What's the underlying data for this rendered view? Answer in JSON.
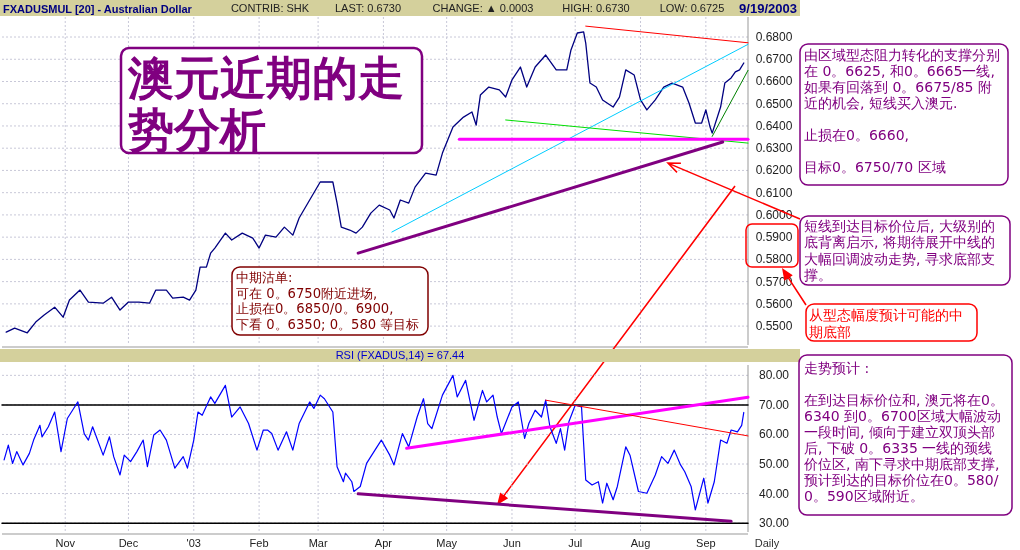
{
  "chart_data": [
    {
      "type": "line",
      "title": "FXADUSMUL [20] - Australian Dollar",
      "xlim": [
        "2002-10-02",
        "2003-09-21"
      ],
      "xticks": [
        {
          "value": "2002-11-01",
          "label": null
        },
        {
          "value": "2002-12-01",
          "label": null
        },
        {
          "value": "2003-01-01",
          "label": null
        },
        {
          "value": "2003-02-01",
          "label": null
        },
        {
          "value": "2003-03-01",
          "label": null
        },
        {
          "value": "2003-04-01",
          "label": null
        },
        {
          "value": "2003-05-01",
          "label": null
        },
        {
          "value": "2003-06-01",
          "label": null
        },
        {
          "value": "2003-07-01",
          "label": null
        },
        {
          "value": "2003-08-01",
          "label": null
        },
        {
          "value": "2003-09-01",
          "label": null
        }
      ],
      "ylim": [
        0.5415,
        0.689
      ],
      "yticks": [
        {
          "value": 0.55,
          "label": "0.5500"
        },
        {
          "value": 0.56,
          "label": "0.5600"
        },
        {
          "value": 0.57,
          "label": "0.5700"
        },
        {
          "value": 0.58,
          "label": "0.5800"
        },
        {
          "value": 0.59,
          "label": "0.5900"
        },
        {
          "value": 0.6,
          "label": "0.6000"
        },
        {
          "value": 0.61,
          "label": "0.6100"
        },
        {
          "value": 0.62,
          "label": "0.6200"
        },
        {
          "value": 0.63,
          "label": "0.6300"
        },
        {
          "value": 0.64,
          "label": "0.6400"
        },
        {
          "value": 0.65,
          "label": "0.6500"
        },
        {
          "value": 0.66,
          "label": "0.6600"
        },
        {
          "value": 0.67,
          "label": "0.6700"
        },
        {
          "value": 0.68,
          "label": "0.6800"
        }
      ],
      "grid": true,
      "tick_labels": "y",
      "annotations": [
        "CONTRIB: SHK",
        "LAST: 0.6730",
        "CHANGE: ▲ 0.0003",
        "HIGH: 0.6730",
        "LOW: 0.6725",
        "9/19/2003",
        "澳元近期的走势分析",
        "中期沽单:\n可在 0。6750附近进场,\n止损在0。6850/0。6900,\n下看 0。6350; 0。580  等目标",
        "由区域型态阻力转化的支撑分别在 0。6625,  和0。6665一线,  如果有回落到 0。6675/85 附近的机会, 短线买入澳元.\n\n止损在0。6660,\n\n目标0。6750/70 区域",
        {
          "text": "短线到达目标价位后, 大级别的底背离启示, 将期待展开中线的大幅回调波动走势, 寻求底部支撑。",
          "x": "2003-08-14",
          "y": 0.6233
        },
        "从型态幅度预计可能的中期底部"
      ],
      "series": [
        {
          "color": "#000080",
          "x": [
            "2002-10-04",
            "2002-10-08",
            "2002-10-14",
            "2002-10-18",
            "2002-10-22",
            "2002-10-27",
            "2002-10-31",
            "2002-11-03",
            "2002-11-08",
            "2002-11-12",
            "2002-11-19",
            "2002-11-23",
            "2002-11-27",
            "2002-12-01",
            "2002-12-06",
            "2002-12-11",
            "2002-12-14",
            "2002-12-19",
            "2002-12-22",
            "2002-12-27",
            "2002-12-30",
            "2003-01-02",
            "2003-01-04",
            "2003-01-07",
            "2003-01-09",
            "2003-01-11",
            "2003-01-16",
            "2003-01-19",
            "2003-01-24",
            "2003-01-29",
            "2003-02-01",
            "2003-02-04",
            "2003-02-09",
            "2003-02-13",
            "2003-02-17",
            "2003-02-20",
            "2003-02-25",
            "2003-03-02",
            "2003-03-08",
            "2003-03-10",
            "2003-03-12",
            "2003-03-16",
            "2003-03-19",
            "2003-03-22",
            "2003-03-26",
            "2003-03-30",
            "2003-04-04",
            "2003-04-06",
            "2003-04-09",
            "2003-04-13",
            "2003-04-16",
            "2003-04-21",
            "2003-04-26",
            "2003-04-29",
            "2003-05-04",
            "2003-05-09",
            "2003-05-13",
            "2003-05-15",
            "2003-05-17",
            "2003-05-21",
            "2003-05-26",
            "2003-05-29",
            "2003-06-01",
            "2003-06-05",
            "2003-06-08",
            "2003-06-12",
            "2003-06-17",
            "2003-06-22",
            "2003-06-27",
            "2003-06-29",
            "2003-07-02",
            "2003-07-05",
            "2003-07-06",
            "2003-07-08",
            "2003-07-11",
            "2003-07-14",
            "2003-07-19",
            "2003-07-22",
            "2003-07-25",
            "2003-07-29",
            "2003-08-01",
            "2003-08-04",
            "2003-08-08",
            "2003-08-12",
            "2003-08-16",
            "2003-08-21",
            "2003-08-24",
            "2003-08-27",
            "2003-08-30",
            "2003-09-01",
            "2003-09-03",
            "2003-09-04",
            "2003-09-08",
            "2003-09-10",
            "2003-09-13",
            "2003-09-15",
            "2003-09-17",
            "2003-09-19"
          ],
          "values": [
            0.5473,
            0.5491,
            0.547,
            0.5518,
            0.555,
            0.5585,
            0.554,
            0.5617,
            0.5662,
            0.5608,
            0.5603,
            0.563,
            0.5572,
            0.5608,
            0.5608,
            0.5603,
            0.5662,
            0.5662,
            0.5626,
            0.563,
            0.5617,
            0.5662,
            0.5765,
            0.5765,
            0.5828,
            0.5851,
            0.5918,
            0.5887,
            0.5918,
            0.5896,
            0.5851,
            0.5909,
            0.59,
            0.5945,
            0.5909,
            0.5986,
            0.6067,
            0.6148,
            0.6148,
            0.6053,
            0.5945,
            0.5932,
            0.5918,
            0.5945,
            0.6008,
            0.6044,
            0.6022,
            0.5986,
            0.6067,
            0.6053,
            0.6125,
            0.6188,
            0.6179,
            0.6278,
            0.6395,
            0.644,
            0.6463,
            0.6404,
            0.6539,
            0.6575,
            0.6562,
            0.653,
            0.6607,
            0.6665,
            0.6575,
            0.6665,
            0.6719,
            0.6652,
            0.6652,
            0.6742,
            0.6818,
            0.6823,
            0.6773,
            0.6593,
            0.6575,
            0.6517,
            0.6485,
            0.653,
            0.6652,
            0.6629,
            0.6517,
            0.6472,
            0.6517,
            0.6575,
            0.6593,
            0.6575,
            0.6503,
            0.6413,
            0.6413,
            0.6472,
            0.6395,
            0.6368,
            0.6485,
            0.6593,
            0.6616,
            0.6643,
            0.6652,
            0.6683
          ]
        },
        {
          "color": "#ff0000",
          "x": [
            "2003-07-06",
            "2003-09-21"
          ],
          "values": [
            0.6849,
            0.6774
          ]
        },
        {
          "color": "#00ccff",
          "x": [
            "2003-04-05",
            "2003-09-21"
          ],
          "values": [
            0.5923,
            0.6767
          ]
        },
        {
          "color": "#00dd00",
          "x": [
            "2003-05-29",
            "2003-09-21"
          ],
          "values": [
            0.6427,
            0.6323
          ]
        },
        {
          "color": "#ff00ff",
          "x": [
            "2003-05-07",
            "2003-09-21"
          ],
          "values": [
            0.634,
            0.634
          ]
        },
        {
          "color": "#008000",
          "x": [
            "2003-09-04",
            "2003-09-21"
          ],
          "values": [
            0.6353,
            0.665
          ]
        },
        {
          "color": "#800080",
          "x": [
            "2003-03-20",
            "2003-09-09"
          ],
          "values": [
            0.5828,
            0.6328
          ]
        }
      ]
    },
    {
      "type": "line",
      "title": "RSI (FXADUS,14) = 67.44",
      "xlim": [
        "2002-10-02",
        "2003-09-21"
      ],
      "xticks": [
        {
          "value": "2002-11-01",
          "label": "Nov"
        },
        {
          "value": "2002-12-01",
          "label": "Dec"
        },
        {
          "value": "2003-01-01",
          "label": "'03"
        },
        {
          "value": "2003-02-01",
          "label": "Feb"
        },
        {
          "value": "2003-03-01",
          "label": "Mar"
        },
        {
          "value": "2003-04-01",
          "label": "Apr"
        },
        {
          "value": "2003-05-01",
          "label": "May"
        },
        {
          "value": "2003-06-01",
          "label": "Jun"
        },
        {
          "value": "2003-07-01",
          "label": "Jul"
        },
        {
          "value": "2003-08-01",
          "label": "Aug"
        },
        {
          "value": "2003-09-01",
          "label": "Sep"
        }
      ],
      "ylim": [
        27,
        83.5
      ],
      "yticks": [
        {
          "value": 30,
          "label": "30.00"
        },
        {
          "value": 40,
          "label": "40.00"
        },
        {
          "value": 50,
          "label": "50.00"
        },
        {
          "value": 60,
          "label": "60.00"
        },
        {
          "value": 70,
          "label": "70.00"
        },
        {
          "value": 80,
          "label": "80.00"
        }
      ],
      "grid": true,
      "annotations": [
        "走势预计 :\n\n在到达目标价位和, 澳元将在0。6340 到0。6700区域大幅波动一段时间, 倾向于建立双顶头部后, 下破 0。6335 一线的颈线价位区,  南下寻求中期底部支撑, 预计到达的目标价位在0。580/0。590区域附近。",
        "Daily"
      ],
      "series": [
        {
          "color": "#000000",
          "x": [
            "2002-10-02",
            "2003-09-21"
          ],
          "values": [
            70,
            70
          ]
        },
        {
          "color": "#000000",
          "x": [
            "2002-10-02",
            "2003-09-21"
          ],
          "values": [
            30,
            30
          ]
        },
        {
          "color": "#0000ff",
          "x": [
            "2002-10-03",
            "2002-10-05",
            "2002-10-07",
            "2002-10-09",
            "2002-10-12",
            "2002-10-15",
            "2002-10-17",
            "2002-10-20",
            "2002-10-21",
            "2002-10-24",
            "2002-10-27",
            "2002-10-30",
            "2002-11-02",
            "2002-11-05",
            "2002-11-07",
            "2002-11-10",
            "2002-11-12",
            "2002-11-14",
            "2002-11-19",
            "2002-11-22",
            "2002-11-24",
            "2002-11-27",
            "2002-11-29",
            "2002-12-02",
            "2002-12-05",
            "2002-12-08",
            "2002-12-10",
            "2002-12-13",
            "2002-12-16",
            "2002-12-19",
            "2002-12-23",
            "2002-12-27",
            "2002-12-29",
            "2003-01-01",
            "2003-01-03",
            "2003-01-05",
            "2003-01-09",
            "2003-01-11",
            "2003-01-16",
            "2003-01-19",
            "2003-01-23",
            "2003-01-27",
            "2003-01-31",
            "2003-02-03",
            "2003-02-05",
            "2003-02-07",
            "2003-02-10",
            "2003-02-14",
            "2003-02-17",
            "2003-02-20",
            "2003-02-25",
            "2003-02-27",
            "2003-03-02",
            "2003-03-04",
            "2003-03-08",
            "2003-03-10",
            "2003-03-13",
            "2003-03-14",
            "2003-03-17",
            "2003-03-18",
            "2003-03-21",
            "2003-03-24",
            "2003-03-27",
            "2003-03-31",
            "2003-04-04",
            "2003-04-06",
            "2003-04-10",
            "2003-04-13",
            "2003-04-17",
            "2003-04-20",
            "2003-04-22",
            "2003-04-24",
            "2003-04-29",
            "2003-05-04",
            "2003-05-06",
            "2003-05-10",
            "2003-05-14",
            "2003-05-18",
            "2003-05-20",
            "2003-05-23",
            "2003-05-25",
            "2003-05-27",
            "2003-06-01",
            "2003-06-04",
            "2003-06-07",
            "2003-06-09",
            "2003-06-12",
            "2003-06-15",
            "2003-06-17",
            "2003-06-19",
            "2003-06-22",
            "2003-06-24",
            "2003-06-26",
            "2003-06-28",
            "2003-07-01",
            "2003-07-04",
            "2003-07-06",
            "2003-07-09",
            "2003-07-12",
            "2003-07-14",
            "2003-07-16",
            "2003-07-19",
            "2003-07-21",
            "2003-07-25",
            "2003-07-27",
            "2003-07-31",
            "2003-08-04",
            "2003-08-08",
            "2003-08-11",
            "2003-08-14",
            "2003-08-17",
            "2003-08-20",
            "2003-08-22",
            "2003-08-25",
            "2003-08-27",
            "2003-08-31",
            "2003-09-02",
            "2003-09-05",
            "2003-09-08",
            "2003-09-11",
            "2003-09-13",
            "2003-09-16",
            "2003-09-18",
            "2003-09-19"
          ],
          "values": [
            51.4,
            56.4,
            50.2,
            54.2,
            49.7,
            53.6,
            58.1,
            63.1,
            59.2,
            62.6,
            67.6,
            54.2,
            65.4,
            68.8,
            71.0,
            60.3,
            58.1,
            62.6,
            53.0,
            59.2,
            52.5,
            46.3,
            53.0,
            50.8,
            54.2,
            58.1,
            49.1,
            59.8,
            61.5,
            58.1,
            48.6,
            52.5,
            48.6,
            58.1,
            67.6,
            66.5,
            72.7,
            70.5,
            76.6,
            65.9,
            69.3,
            63.7,
            54.7,
            61.5,
            61.5,
            60.3,
            54.7,
            60.9,
            54.7,
            63.7,
            71.0,
            68.8,
            73.3,
            72.1,
            67.6,
            49.1,
            44.0,
            46.9,
            44.0,
            40.7,
            42.4,
            50.2,
            53.6,
            58.1,
            53.0,
            49.7,
            60.3,
            55.8,
            65.9,
            72.1,
            63.7,
            62.0,
            73.3,
            80.0,
            72.7,
            78.3,
            64.8,
            74.9,
            71.0,
            73.3,
            65.9,
            60.3,
            69.3,
            71.0,
            58.7,
            63.7,
            68.2,
            65.9,
            71.6,
            62.6,
            57.0,
            62.0,
            54.7,
            64.3,
            69.9,
            69.3,
            44.6,
            42.9,
            44.0,
            36.8,
            43.5,
            37.9,
            42.4,
            55.8,
            53.0,
            40.7,
            40.1,
            46.3,
            52.5,
            50.2,
            54.7,
            49.7,
            47.4,
            42.4,
            34.5,
            45.2,
            36.8,
            44.0,
            58.1,
            57.0,
            61.5,
            60.9,
            63.1,
            67.44
          ]
        },
        {
          "color": "#ff00ff",
          "x": [
            "2003-04-12",
            "2003-09-21"
          ],
          "values": [
            55.3,
            72.6
          ]
        },
        {
          "color": "#ff0000",
          "x": [
            "2003-06-17",
            "2003-09-21"
          ],
          "values": [
            71.6,
            59.5
          ]
        },
        {
          "color": "#800080",
          "x": [
            "2003-03-20",
            "2003-09-13"
          ],
          "values": [
            39.9,
            30.6
          ]
        }
      ]
    }
  ]
}
